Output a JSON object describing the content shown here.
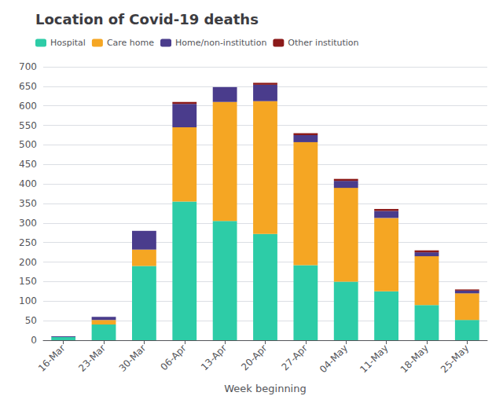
{
  "chart_data": {
    "type": "bar",
    "stacked": true,
    "title": "Location of Covid-19 deaths",
    "xlabel": "Week beginning",
    "categories": [
      "16-Mar",
      "23-Mar",
      "30-Mar",
      "06-Apr",
      "13-Apr",
      "20-Apr",
      "27-Apr",
      "04-May",
      "11-May",
      "18-May",
      "25-May"
    ],
    "series": [
      {
        "name": "Hospital",
        "color": "#2dcca7",
        "values": [
          8,
          40,
          190,
          355,
          305,
          272,
          192,
          150,
          125,
          90,
          52
        ]
      },
      {
        "name": "Care home",
        "color": "#f5a623",
        "values": [
          0,
          12,
          42,
          190,
          305,
          340,
          315,
          240,
          188,
          125,
          68
        ]
      },
      {
        "name": "Home/non-institution",
        "color": "#4a3c8c",
        "values": [
          2,
          8,
          48,
          60,
          38,
          42,
          18,
          18,
          18,
          10,
          7
        ]
      },
      {
        "name": "Other institution",
        "color": "#8b1a1a",
        "values": [
          0,
          0,
          0,
          5,
          0,
          5,
          5,
          5,
          5,
          5,
          3
        ]
      }
    ],
    "ylim": [
      0,
      700
    ],
    "yticks": [
      0,
      50,
      100,
      150,
      200,
      250,
      300,
      350,
      400,
      450,
      500,
      550,
      600,
      650,
      700
    ],
    "grid": true,
    "legend": "upper left"
  }
}
